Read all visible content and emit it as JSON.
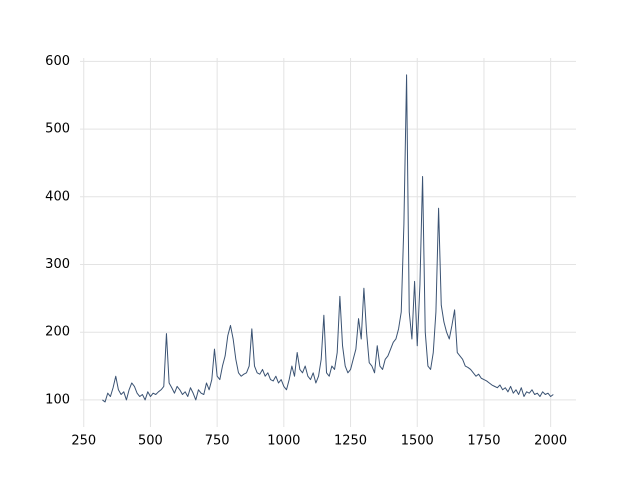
{
  "chart_data": {
    "type": "line",
    "x": [
      320,
      330,
      340,
      350,
      360,
      370,
      380,
      390,
      400,
      410,
      420,
      430,
      440,
      450,
      460,
      470,
      480,
      490,
      500,
      510,
      520,
      530,
      540,
      550,
      560,
      570,
      580,
      590,
      600,
      610,
      620,
      630,
      640,
      650,
      660,
      670,
      680,
      690,
      700,
      710,
      720,
      730,
      740,
      750,
      760,
      770,
      780,
      790,
      800,
      810,
      820,
      830,
      840,
      850,
      860,
      870,
      880,
      890,
      900,
      910,
      920,
      930,
      940,
      950,
      960,
      970,
      980,
      990,
      1000,
      1010,
      1020,
      1030,
      1040,
      1050,
      1060,
      1070,
      1080,
      1090,
      1100,
      1110,
      1120,
      1130,
      1140,
      1150,
      1160,
      1170,
      1180,
      1190,
      1200,
      1210,
      1220,
      1230,
      1240,
      1250,
      1260,
      1270,
      1280,
      1290,
      1300,
      1310,
      1320,
      1330,
      1340,
      1350,
      1360,
      1370,
      1380,
      1390,
      1400,
      1410,
      1420,
      1430,
      1440,
      1450,
      1460,
      1470,
      1480,
      1490,
      1500,
      1510,
      1520,
      1530,
      1540,
      1550,
      1560,
      1570,
      1580,
      1590,
      1600,
      1610,
      1620,
      1630,
      1640,
      1650,
      1660,
      1670,
      1680,
      1690,
      1700,
      1710,
      1720,
      1730,
      1740,
      1750,
      1760,
      1770,
      1780,
      1790,
      1800,
      1810,
      1820,
      1830,
      1840,
      1850,
      1860,
      1870,
      1880,
      1890,
      1900,
      1910,
      1920,
      1930,
      1940,
      1950,
      1960,
      1970,
      1980,
      1990,
      2000,
      2010
    ],
    "series": [
      {
        "color": "#3b5373",
        "values": [
          100,
          97,
          110,
          105,
          118,
          135,
          115,
          108,
          112,
          100,
          115,
          125,
          120,
          110,
          105,
          108,
          100,
          112,
          105,
          110,
          108,
          112,
          115,
          120,
          198,
          125,
          118,
          110,
          120,
          115,
          108,
          112,
          105,
          118,
          110,
          100,
          115,
          110,
          108,
          125,
          115,
          130,
          175,
          135,
          130,
          150,
          165,
          195,
          210,
          190,
          160,
          140,
          135,
          138,
          140,
          150,
          205,
          150,
          140,
          138,
          145,
          135,
          140,
          130,
          128,
          135,
          125,
          130,
          120,
          115,
          130,
          150,
          135,
          170,
          145,
          140,
          150,
          135,
          130,
          140,
          125,
          135,
          160,
          225,
          140,
          135,
          150,
          145,
          170,
          253,
          180,
          150,
          140,
          145,
          160,
          175,
          220,
          190,
          265,
          200,
          155,
          150,
          140,
          180,
          150,
          145,
          160,
          165,
          175,
          185,
          190,
          205,
          230,
          360,
          580,
          230,
          190,
          275,
          180,
          270,
          430,
          200,
          150,
          145,
          170,
          230,
          383,
          240,
          215,
          200,
          190,
          210,
          233,
          170,
          165,
          160,
          150,
          148,
          145,
          140,
          135,
          138,
          132,
          130,
          128,
          125,
          122,
          120,
          118,
          122,
          115,
          118,
          112,
          120,
          110,
          115,
          108,
          118,
          105,
          112,
          110,
          115,
          108,
          110,
          105,
          112,
          108,
          110,
          105,
          108
        ]
      }
    ],
    "xlim": [
      236,
      2095
    ],
    "ylim": [
      60,
      605
    ],
    "xticks": [
      250,
      500,
      750,
      1000,
      1250,
      1500,
      1750,
      2000
    ],
    "yticks": [
      100,
      200,
      300,
      400,
      500,
      600
    ],
    "grid": true
  }
}
